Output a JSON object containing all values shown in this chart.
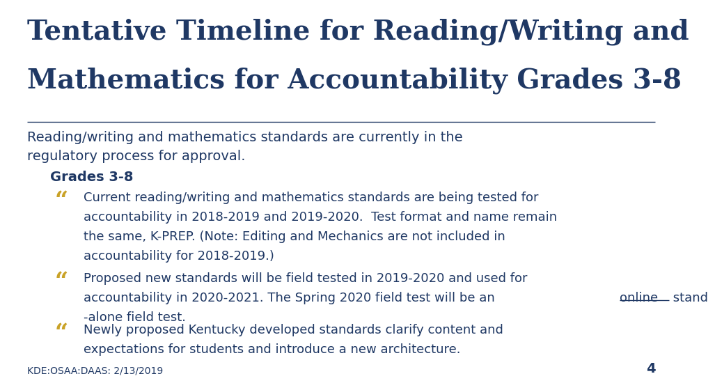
{
  "bg_color": "#ffffff",
  "title_line1": "Tentative Timeline for Reading/Writing and",
  "title_line2": "Mathematics for Accountability Grades 3-8",
  "title_color": "#1F3864",
  "title_fontsize": 28,
  "subtitle_line1": "Reading/writing and mathematics standards are currently in the",
  "subtitle_line2": "regulatory process for approval.",
  "subtitle_color": "#1F3864",
  "subtitle_fontsize": 14,
  "grades_label": "Grades 3-8",
  "grades_color": "#1F3864",
  "grades_fontsize": 14,
  "bullet_color": "#C9A227",
  "bullet_fontsize": 24,
  "body_color": "#1F3864",
  "body_fontsize": 13,
  "bullet1_lines": [
    "Current reading/writing and mathematics standards are being tested for",
    "accountability in 2018-2019 and 2019-2020.  Test format and name remain",
    "the same, K-PREP. (Note: Editing and Mechanics are not included in",
    "accountability for 2018-2019.)"
  ],
  "bullet2_lines": [
    "Proposed new standards will be field tested in 2019-2020 and used for",
    "accountability in 2020-2021. The Spring 2020 field test will be an [online] stand",
    "-alone field test."
  ],
  "bullet3_lines": [
    "Newly proposed Kentucky developed standards clarify content and",
    "expectations for students and introduce a new architecture."
  ],
  "footer": "KDE:OSAA:DAAS: 2/13/2019",
  "footer_color": "#1F3864",
  "footer_fontsize": 10,
  "page_num": "4",
  "page_num_color": "#1F3864",
  "page_num_fontsize": 14,
  "divider_color": "#1F3864"
}
